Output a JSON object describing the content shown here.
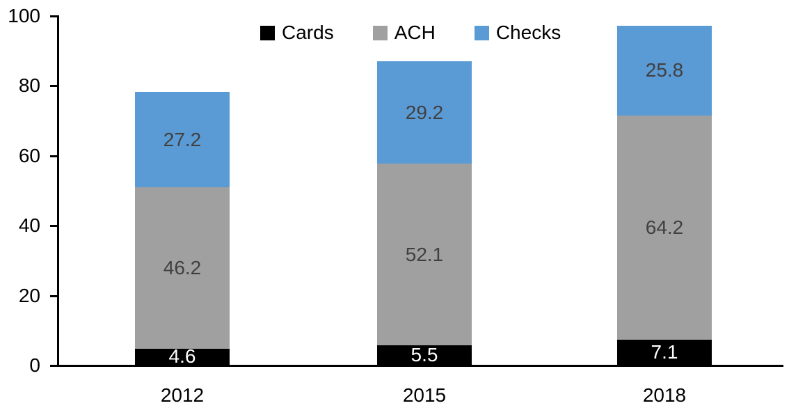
{
  "chart_data": {
    "type": "bar",
    "stacked": true,
    "title": "",
    "categories": [
      "2012",
      "2015",
      "2018"
    ],
    "series": [
      {
        "name": "Cards",
        "color": "#000000",
        "label_color": "#ffffff",
        "values": [
          4.6,
          5.5,
          7.1
        ]
      },
      {
        "name": "ACH",
        "color": "#a0a0a0",
        "label_color": "#404040",
        "values": [
          46.2,
          52.1,
          64.2
        ]
      },
      {
        "name": "Checks",
        "color": "#5b9bd5",
        "label_color": "#404040",
        "values": [
          27.2,
          29.2,
          25.8
        ]
      }
    ],
    "yticks": [
      0,
      20,
      40,
      60,
      80,
      100
    ],
    "ylim": [
      0,
      100
    ],
    "xlabel": "",
    "ylabel": "",
    "grid": false,
    "legend_position": "top-center",
    "axis_color": "#000000",
    "background_color": "#ffffff"
  }
}
